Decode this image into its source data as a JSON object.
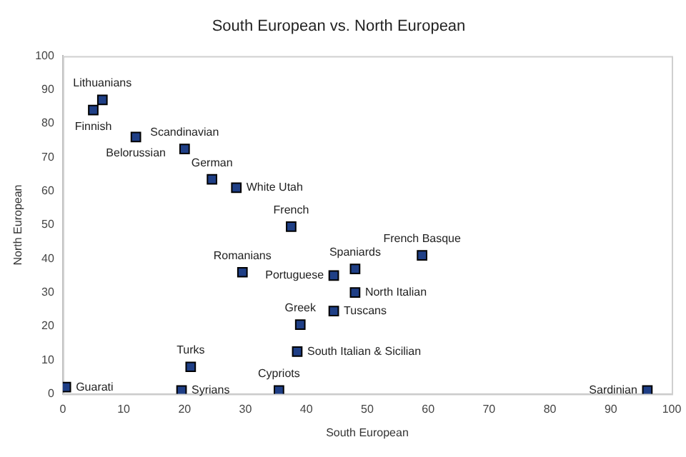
{
  "chart_data": {
    "type": "scatter",
    "title": "South European vs. North European",
    "xlabel": "South European",
    "ylabel": "North European",
    "x": [
      6.5,
      5,
      12,
      20,
      24.5,
      28.5,
      37.5,
      29.5,
      44.5,
      48,
      48,
      59,
      44.5,
      39,
      38.5,
      21,
      0.5,
      19.5,
      35.5,
      96
    ],
    "series": [
      {
        "color": "#1f3f86",
        "values": [
          87,
          84,
          76,
          72.5,
          63.5,
          61,
          49.5,
          36,
          35,
          37,
          30,
          41,
          24.5,
          20.5,
          12.5,
          8,
          2,
          1,
          1,
          1
        ]
      }
    ],
    "annotations": [
      {
        "text": "Lithuanians",
        "x": 6.5,
        "y": 87
      },
      {
        "text": "Finnish",
        "x": 5,
        "y": 84
      },
      {
        "text": "Belorussian",
        "x": 12,
        "y": 76
      },
      {
        "text": "Scandinavian",
        "x": 20,
        "y": 72.5
      },
      {
        "text": "German",
        "x": 24.5,
        "y": 63.5
      },
      {
        "text": "White Utah",
        "x": 28.5,
        "y": 61
      },
      {
        "text": "French",
        "x": 37.5,
        "y": 49.5
      },
      {
        "text": "Romanians",
        "x": 29.5,
        "y": 36
      },
      {
        "text": "Portuguese",
        "x": 44.5,
        "y": 35
      },
      {
        "text": "Spaniards",
        "x": 48,
        "y": 37
      },
      {
        "text": "North Italian",
        "x": 48,
        "y": 30
      },
      {
        "text": "French Basque",
        "x": 59,
        "y": 41
      },
      {
        "text": "Tuscans",
        "x": 44.5,
        "y": 24.5
      },
      {
        "text": "Greek",
        "x": 39,
        "y": 20.5
      },
      {
        "text": "South Italian & Sicilian",
        "x": 38.5,
        "y": 12.5
      },
      {
        "text": "Turks",
        "x": 21,
        "y": 8
      },
      {
        "text": "Guarati",
        "x": 0.5,
        "y": 2
      },
      {
        "text": "Syrians",
        "x": 19.5,
        "y": 1
      },
      {
        "text": "Cypriots",
        "x": 35.5,
        "y": 1
      },
      {
        "text": "Sardinian",
        "x": 96,
        "y": 1
      }
    ],
    "xlim": [
      0,
      100
    ],
    "xticks": [
      0,
      10,
      20,
      30,
      40,
      50,
      60,
      70,
      80,
      90,
      100
    ],
    "ylim": [
      0,
      100
    ],
    "yticks": [
      0,
      10,
      20,
      30,
      40,
      50,
      60,
      70,
      80,
      90,
      100
    ],
    "grid": false,
    "legend": false,
    "marker": "square"
  }
}
